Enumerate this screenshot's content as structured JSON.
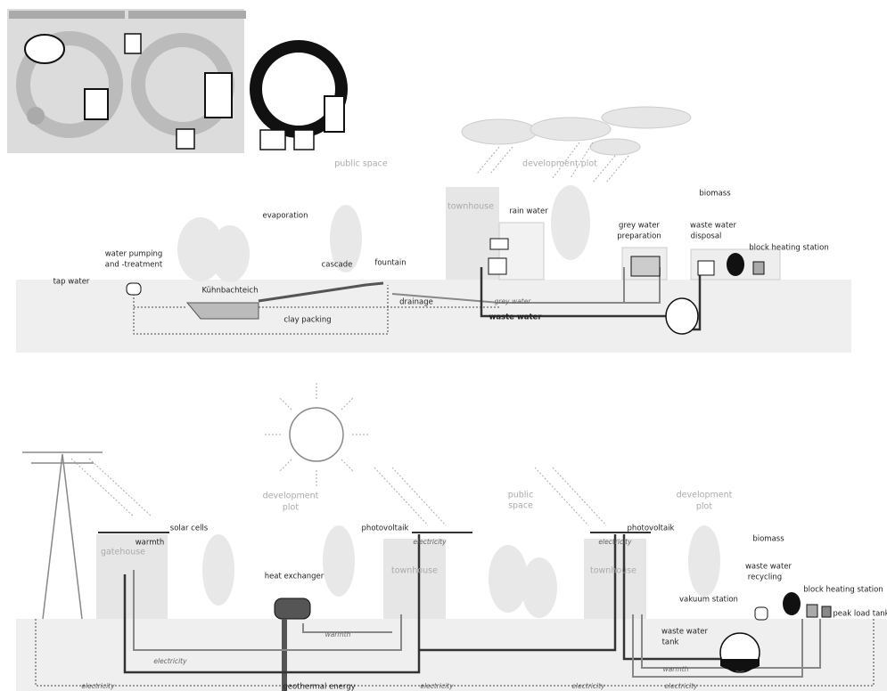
{
  "upper_diagram": {
    "labels": [
      "public space",
      "development plot",
      "townhouse",
      "rain water",
      "biomass",
      "grey water",
      "preparation",
      "waste water",
      "disposal",
      "block heating station",
      "evaporation",
      "water pumping",
      "and -treatment",
      "tap water",
      "cascade",
      "fountain",
      "Kühnbachteich",
      "clay packing",
      "drainage",
      "grey water",
      "waste water"
    ]
  },
  "lower_diagram": {
    "labels": [
      "development",
      "plot",
      "public",
      "space",
      "development",
      "plot",
      "solar cells",
      "photovoltaik",
      "photovoltaik",
      "electricity",
      "electricity",
      "warmth",
      "gatehouse",
      "biomass",
      "waste water",
      "recycling",
      "heat exchanger",
      "townhouse",
      "townhouse",
      "block heating station",
      "vakuum station",
      "peak load tank",
      "waste water",
      "tank",
      "warmth",
      "electricity",
      "warmth",
      "geothermal energy",
      "electricity",
      "electricity",
      "electricity",
      "electricity"
    ]
  }
}
